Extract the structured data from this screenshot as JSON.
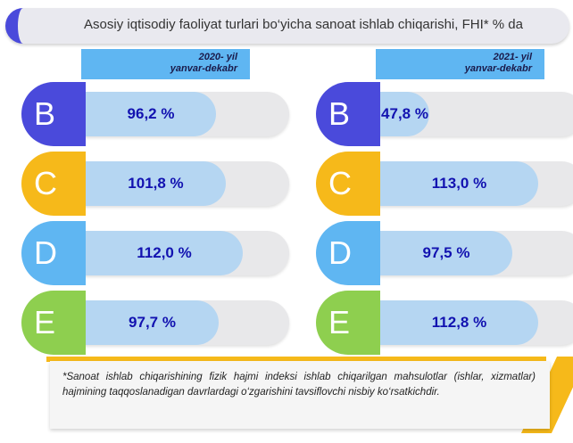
{
  "title": "Asosiy iqtisodiy faoliyat turlari bo‘yicha sanoat ishlab chiqarishi, FHI* % da",
  "colors": {
    "B": "#4a4adb",
    "C": "#f6b91a",
    "D": "#5fb6f2",
    "E": "#8ecf4f",
    "fill": "#b5d6f2",
    "value_text": "#1212b0"
  },
  "chart_data": {
    "type": "bar",
    "categories": [
      "B",
      "C",
      "D",
      "E"
    ],
    "series": [
      {
        "name": "2020- yil yanvar-dekabr",
        "values": [
          96.2,
          101.8,
          112.0,
          97.7
        ],
        "labels": [
          "96,2 %",
          "101,8 %",
          "112,0 %",
          "97,7 %"
        ]
      },
      {
        "name": "2021- yil yanvar-dekabr",
        "values": [
          47.8,
          113.0,
          97.5,
          112.8
        ],
        "labels": [
          "47,8 %",
          "113,0 %",
          "97,5 %",
          "112,8 %"
        ]
      }
    ],
    "periods": [
      {
        "line1": "2020- yil",
        "line2": "yanvar-dekabr"
      },
      {
        "line1": "2021- yil",
        "line2": "yanvar-dekabr"
      }
    ]
  },
  "footnote": "*Sanoat ishlab chiqarishining fizik hajmi indeksi ishlab chiqarilgan mahsulotlar (ishlar, xizmatlar) hajmining taqqoslanadigan davrlardagi o‘zgarishini tavsiflovchi nisbiy ko‘rsatkichdir."
}
